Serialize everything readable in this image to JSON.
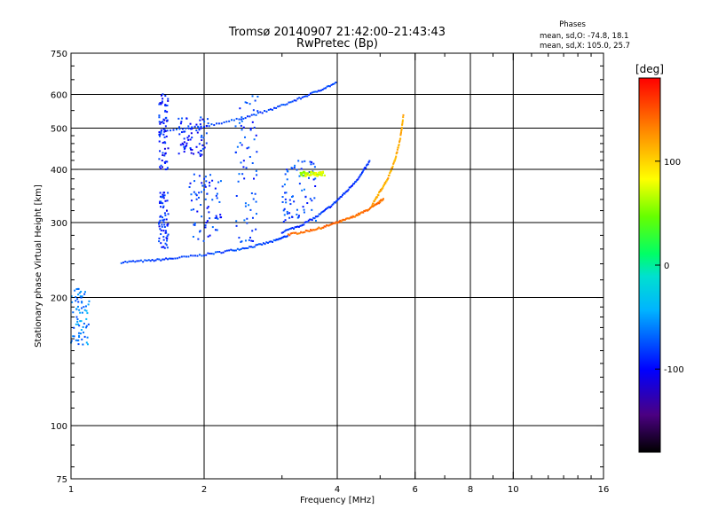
{
  "header": {
    "title_line1": "Tromsø 20140907 21:42:00–21:43:43",
    "title_line2": "RwPretec (Bp)",
    "stats_heading": "Phases",
    "stats_o": "mean, sd,O: -74.8, 18.1",
    "stats_x": "mean, sd,X: 105.0, 25.7"
  },
  "chart_data": {
    "type": "scatter",
    "title": "Tromsø 20140907 21:42:00–21:43:43",
    "subtitle": "RwPretec (Bp)",
    "xlabel": "Frequency [MHz]",
    "ylabel": "Stationary phase Virtual Height [km]",
    "xscale": "log",
    "yscale": "log",
    "xlim": [
      1,
      16
    ],
    "ylim": [
      75,
      750
    ],
    "xticks": [
      1,
      2,
      4,
      6,
      8,
      10,
      16
    ],
    "xtick_labels": [
      "1",
      "2",
      "4",
      "6",
      "8",
      "10",
      "16"
    ],
    "xminor": [
      3,
      5,
      7,
      9,
      11,
      12,
      13,
      14,
      15
    ],
    "xgrid": [
      2,
      4,
      6,
      8,
      10
    ],
    "yticks": [
      75,
      100,
      200,
      300,
      400,
      500,
      600,
      750
    ],
    "ytick_labels": [
      "75",
      "100",
      "200",
      "300",
      "400",
      "500",
      "600",
      "750"
    ],
    "ygrid": [
      100,
      200,
      300,
      400,
      500,
      600
    ],
    "grid": true,
    "colorbar": {
      "label": "[deg]",
      "range": [
        -180,
        180
      ],
      "ticks": [
        -100,
        0,
        100
      ],
      "tick_labels": [
        "-100",
        "0",
        "100"
      ]
    },
    "traces": [
      {
        "x": [
          1.3,
          1.5,
          1.7,
          2.0,
          2.3,
          2.6,
          2.9,
          3.1
        ],
        "y": [
          242,
          244,
          247,
          252,
          258,
          264,
          272,
          280
        ],
        "phase": -80
      },
      {
        "x": [
          3.1,
          3.4,
          3.7,
          4.0,
          4.3,
          4.6,
          4.9,
          5.1
        ],
        "y": [
          281,
          286,
          292,
          300,
          308,
          318,
          330,
          342
        ],
        "phase": 140
      },
      {
        "x": [
          3.0,
          3.3,
          3.6,
          3.9,
          4.2,
          4.5,
          4.75
        ],
        "y": [
          285,
          295,
          310,
          330,
          355,
          385,
          420
        ],
        "phase": -85
      },
      {
        "x": [
          1.6,
          2.0,
          2.4,
          2.8,
          3.2,
          3.6,
          4.0
        ],
        "y": [
          490,
          505,
          525,
          550,
          580,
          610,
          640
        ],
        "phase": -80
      },
      {
        "x": [
          4.8,
          5.0,
          5.2,
          5.4,
          5.55,
          5.65
        ],
        "y": [
          330,
          355,
          380,
          420,
          470,
          540
        ],
        "phase": 115
      }
    ],
    "clusters": [
      {
        "x_range": [
          1.58,
          1.66
        ],
        "y_range": [
          400,
          610
        ],
        "phase": -95
      },
      {
        "x_range": [
          1.58,
          1.66
        ],
        "y_range": [
          260,
          355
        ],
        "phase": -90
      },
      {
        "x_range": [
          1.75,
          2.05
        ],
        "y_range": [
          430,
          530
        ],
        "phase": -90
      },
      {
        "x_range": [
          1.85,
          2.2
        ],
        "y_range": [
          270,
          390
        ],
        "phase": -85
      },
      {
        "x_range": [
          2.35,
          2.65
        ],
        "y_range": [
          270,
          600
        ],
        "phase": -80
      },
      {
        "x_range": [
          3.0,
          3.6
        ],
        "y_range": [
          300,
          420
        ],
        "phase": -80
      },
      {
        "x_range": [
          3.3,
          3.75
        ],
        "y_range": [
          385,
          395
        ],
        "phase": 70
      },
      {
        "x_range": [
          1.0,
          1.1
        ],
        "y_range": [
          155,
          210
        ],
        "phase": -60
      }
    ]
  }
}
